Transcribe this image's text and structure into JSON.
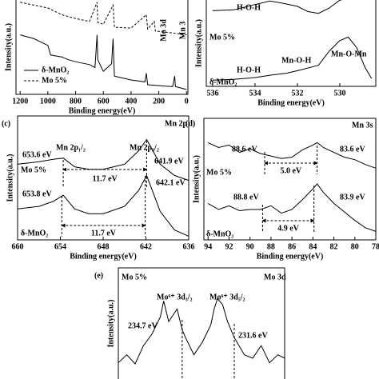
{
  "chart_data": [
    {
      "type": "line",
      "xlabel": "Binding energy(eV)",
      "ylabel": "Intensity(a.u.)",
      "xlim": [
        1230,
        -10
      ],
      "xticks": [
        1200,
        1000,
        800,
        600,
        400,
        200,
        0
      ],
      "ylim": [
        0,
        100
      ],
      "legend": true,
      "series": [
        {
          "name": "δ-MnO₂",
          "color": "#000000",
          "linestyle": "solid",
          "x": [
            1200,
            1100,
            1000,
            980,
            900,
            850,
            800,
            700,
            660,
            645,
            640,
            600,
            540,
            530,
            520,
            400,
            300,
            290,
            280,
            100,
            85,
            80,
            50,
            0
          ],
          "values": [
            62,
            58,
            51,
            41,
            39,
            36,
            34,
            31,
            28,
            62,
            36,
            24,
            32,
            58,
            19,
            15,
            13,
            22,
            10,
            8,
            19,
            8,
            7,
            5
          ]
        },
        {
          "name": "Mo 5%",
          "color": "#000000",
          "linestyle": "dashed",
          "x": [
            1200,
            1000,
            900,
            800,
            700,
            645,
            640,
            600,
            530,
            520,
            400,
            290,
            280,
            232,
            225,
            100,
            0
          ],
          "values": [
            96,
            90,
            83,
            79,
            76,
            96,
            75,
            73,
            93,
            70,
            69,
            83,
            68,
            76,
            66,
            64,
            62
          ]
        }
      ],
      "annotations": [
        "Mo 3d",
        "Mn 3"
      ]
    },
    {
      "type": "line",
      "xlabel": "Binding energy(eV)",
      "ylabel": "Intensity(a.u.)",
      "xlim": [
        536.3,
        528.3
      ],
      "xticks": [
        536,
        534,
        532,
        530
      ],
      "ylim": [
        0,
        100
      ],
      "series": [
        {
          "name": "Mo 5%",
          "color": "#000000",
          "linestyle": "solid",
          "x": [
            536,
            535,
            534,
            533.3,
            532.8,
            532,
            531.5,
            531,
            530.5,
            530,
            529.6,
            529.2
          ],
          "values": [
            86,
            87,
            93,
            97,
            95,
            91,
            85,
            83,
            89,
            98,
            100,
            100
          ]
        },
        {
          "name": "δ-MnO₂",
          "color": "#000000",
          "linestyle": "solid",
          "x": [
            536,
            535,
            534,
            533.2,
            532.5,
            531.8,
            531,
            530.5,
            530,
            529.6,
            529.2,
            528.8,
            528.5
          ],
          "values": [
            7,
            8,
            10,
            13,
            15,
            19,
            24,
            40,
            52,
            56,
            44,
            21,
            9
          ]
        }
      ],
      "annotations": [
        "H-O-H",
        "H-O-H",
        "Mn-O-H",
        "Mn-O-Mn"
      ]
    },
    {
      "type": "line",
      "panel_label": "(c)",
      "xlabel": "Binding energy(eV)",
      "ylabel": "Intensity(a.u.)",
      "xlim": [
        660,
        636
      ],
      "xticks": [
        660,
        654,
        648,
        642,
        636
      ],
      "ylim": [
        0,
        100
      ],
      "series": [
        {
          "name": "Mo 5%",
          "color": "#000000",
          "linestyle": "solid",
          "x": [
            660,
            657,
            655,
            653.6,
            652,
            650,
            648,
            645,
            643,
            641.9,
            640,
            638,
            636
          ],
          "values": [
            61,
            63,
            65,
            66,
            59,
            57,
            57,
            61,
            72,
            81,
            61,
            52,
            48
          ]
        },
        {
          "name": "δ-MnO₂",
          "color": "#000000",
          "linestyle": "solid",
          "x": [
            660,
            657,
            655,
            653.6,
            652,
            650,
            648,
            645,
            643,
            641.9,
            640,
            638,
            636
          ],
          "values": [
            25,
            27,
            31,
            36,
            25,
            21,
            21,
            27,
            40,
            52,
            23,
            8,
            3
          ]
        }
      ],
      "annotations": [
        "Mn 2p",
        "Mn 2p₁/₂",
        "Mn 2p₃/₂"
      ],
      "peaks": [
        {
          "value": 653.6,
          "label": "653.6 eV"
        },
        {
          "value": 641.9,
          "label": "641.9 eV"
        },
        {
          "value": 653.8,
          "label": "653.8 eV"
        },
        {
          "value": 642.1,
          "label": "642.1 eV"
        }
      ],
      "splittings": [
        {
          "value": 11.7,
          "label": "11.7 eV"
        },
        {
          "value": 11.7,
          "label": "11.7 eV"
        }
      ]
    },
    {
      "type": "line",
      "panel_label": "(d)",
      "xlabel": "Binding energy(eV)",
      "ylabel": "Intensity(a.u.)",
      "xlim": [
        94.4,
        78
      ],
      "xticks": [
        94,
        92,
        90,
        88,
        86,
        84,
        82,
        80,
        78
      ],
      "ylim": [
        0,
        100
      ],
      "series": [
        {
          "name": "Mo 5%",
          "color": "#000000",
          "linestyle": "solid",
          "x": [
            94,
            93,
            92,
            91,
            90,
            89,
            88,
            87,
            86,
            85,
            84,
            83.6,
            83,
            82,
            81,
            80,
            79,
            78
          ],
          "values": [
            80,
            76,
            78,
            72,
            75,
            71,
            69,
            67,
            68,
            74,
            78,
            80,
            76,
            72,
            68,
            66,
            62,
            59
          ]
        },
        {
          "name": "δ-MnO₂",
          "color": "#000000",
          "linestyle": "solid",
          "x": [
            94,
            93,
            92,
            91,
            90,
            89,
            88,
            87,
            86,
            85,
            84,
            83.6,
            83,
            82,
            81,
            80,
            79,
            78
          ],
          "values": [
            30,
            25,
            28,
            24,
            25,
            25,
            28,
            22,
            25,
            33,
            42,
            46,
            39,
            30,
            23,
            16,
            10,
            7
          ]
        }
      ],
      "annotations": [
        "Mn 3s"
      ],
      "peaks": [
        {
          "value": 88.6,
          "label": "88.6 eV"
        },
        {
          "value": 83.6,
          "label": "83.6 eV"
        },
        {
          "value": 88.8,
          "label": "88.8 eV"
        },
        {
          "value": 83.9,
          "label": "83.9 eV"
        }
      ],
      "splittings": [
        {
          "value": 5.0,
          "label": "5.0 eV"
        },
        {
          "value": 4.9,
          "label": "4.9 eV"
        }
      ]
    },
    {
      "type": "line",
      "panel_label": "(e)",
      "ylabel": "Intensity(a.u.)",
      "xlim": [
        238.5,
        228.6
      ],
      "ylim": [
        0,
        100
      ],
      "series": [
        {
          "name": "Mo 5%",
          "color": "#000000",
          "linestyle": "solid",
          "x": [
            238.5,
            238,
            237.5,
            237,
            236.5,
            236,
            235.8,
            235.5,
            235,
            234.7,
            234.5,
            234,
            233.5,
            233,
            232.8,
            232.6,
            232.3,
            232,
            231.6,
            231,
            230.5,
            230,
            229.5,
            229,
            228.6
          ],
          "values": [
            17,
            24,
            16,
            32,
            42,
            57,
            71,
            53,
            64,
            46,
            39,
            24,
            35,
            50,
            64,
            73,
            68,
            53,
            39,
            24,
            21,
            32,
            17,
            24,
            21
          ]
        }
      ],
      "annotations": [
        "Mo 3d",
        "Mo⁶⁺ 3d₃/₂",
        "Mo⁶⁺ 3d₅/₂"
      ],
      "peaks": [
        {
          "value": 234.7,
          "label": "234.7 eV"
        },
        {
          "value": 231.6,
          "label": "231.6 eV"
        }
      ]
    }
  ]
}
